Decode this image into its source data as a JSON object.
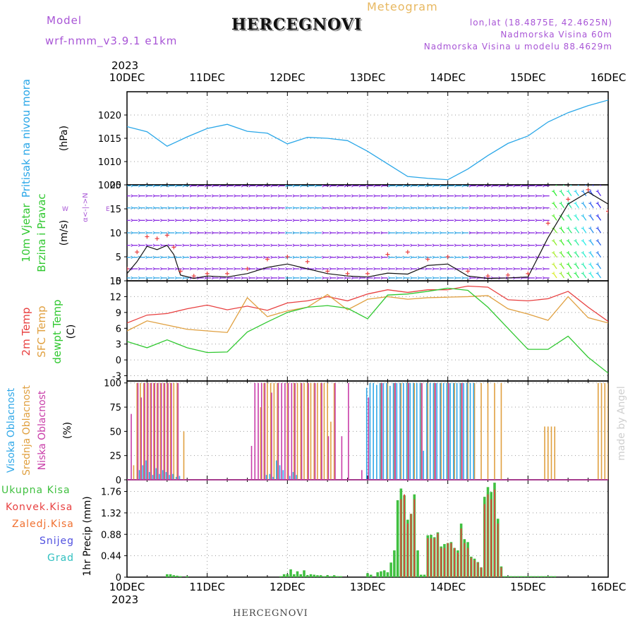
{
  "header": {
    "model_label": "Model",
    "model_name": "wrf-nmm_v3.9.1 e1km",
    "station": "HERCEGNOVI",
    "meteogram": "Meteogram",
    "lonlat": "lon,lat (18.4875E, 42.4625N)",
    "elevation": "Nadmorska Visina 60m",
    "model_elevation": "Nadmorska Visina u modelu 88.4629m",
    "year_top": "2023",
    "year_bottom": "2023",
    "footer_station": "HERCEGNOVI",
    "watermark": "made by Angel"
  },
  "colors": {
    "pressure": "#2aa7e8",
    "temp2m": "#e84040",
    "sfc": "#e0a040",
    "dewpt": "#30c830",
    "wind_arrows": "#8a2be2",
    "wind_speed": "#111111",
    "gust": "#e84040",
    "cloud_high": "#30a8e8",
    "cloud_mid": "#e0a040",
    "cloud_low": "#c83ca8",
    "precip_total": "#40c040",
    "precip_conv": "#e84040"
  },
  "x_ticks": [
    "10DEC",
    "11DEC",
    "12DEC",
    "13DEC",
    "14DEC",
    "15DEC",
    "16DEC"
  ],
  "panels": {
    "pressure": {
      "ylabel_lines": [
        "Pritisak na nivou mora"
      ],
      "unit": "(hPa)",
      "ticks": [
        "1005",
        "1010",
        "1015",
        "1020"
      ]
    },
    "wind": {
      "ylabel_lines": [
        "10m Vjetar",
        "Brzina i Pravac"
      ],
      "unit": "(m/s)",
      "ticks": [
        "0",
        "5",
        "10",
        "15",
        "20"
      ],
      "compass": "N",
      "compass_w": "W",
      "compass_e": "E"
    },
    "temp": {
      "ylabel_lines": [
        "2m Temp",
        "SFC Temp",
        "dewpt Temp"
      ],
      "unit": "(C)",
      "ticks": [
        "-3",
        "0",
        "3",
        "6",
        "9",
        "12",
        "15"
      ]
    },
    "cloud": {
      "ylabel_lines": [
        "Visoka Oblacnost",
        "Srednja Oblacnost",
        "Niska Oblacnost"
      ],
      "unit": "(%)",
      "ticks": [
        "0",
        "25",
        "50",
        "75",
        "100"
      ]
    },
    "precip": {
      "legend": [
        "Ukupna Kisa",
        "Konvek.Kisa",
        "Zaledj.Kisa",
        "Snijeg",
        "Grad"
      ],
      "unit_label": "1hr Precip (mm)",
      "ticks": [
        "0",
        "0.44",
        "0.88",
        "1.32",
        "1.76"
      ]
    }
  },
  "chart_data": [
    {
      "type": "line",
      "title": "Pritisak na nivou mora",
      "ylabel": "(hPa)",
      "ylim": [
        1005,
        1025
      ],
      "xlim": [
        0,
        144
      ],
      "x": [
        0,
        6,
        12,
        18,
        24,
        30,
        36,
        42,
        48,
        54,
        60,
        66,
        72,
        78,
        84,
        90,
        96,
        102,
        108,
        114,
        120,
        126,
        132,
        138,
        144
      ],
      "series": [
        {
          "values": [
            1017.5,
            1016.4,
            1013.3,
            1015.3,
            1017.1,
            1018.0,
            1016.5,
            1016.1,
            1013.8,
            1015.2,
            1015.0,
            1014.5,
            1012.2,
            1009.5,
            1006.8,
            1006.4,
            1006.1,
            1008.4,
            1011.3,
            1013.9,
            1015.5,
            1018.5,
            1020.5,
            1022.0,
            1023.2
          ]
        }
      ]
    },
    {
      "type": "line",
      "title": "10m Vjetar Brzina i Pravac",
      "ylabel": "(m/s)",
      "ylim": [
        0,
        20
      ],
      "xlim": [
        0,
        144
      ],
      "series": [
        {
          "x": [
            0,
            3,
            6,
            9,
            12,
            14,
            16,
            20,
            24,
            30,
            36,
            42,
            48,
            54,
            60,
            66,
            72,
            78,
            84,
            90,
            96,
            102,
            108,
            114,
            120,
            126,
            132,
            138,
            144
          ],
          "values": [
            1.5,
            4.0,
            7.2,
            6.5,
            7.4,
            5.5,
            1.2,
            0.5,
            1.0,
            0.8,
            1.5,
            2.8,
            3.5,
            2.5,
            1.5,
            1.0,
            0.8,
            1.6,
            1.4,
            3.2,
            3.5,
            1.0,
            0.5,
            0.6,
            0.8,
            9.0,
            16.0,
            18.5,
            16.0
          ]
        },
        {
          "x": [
            0,
            3,
            6,
            9,
            12,
            14,
            16,
            20,
            24,
            30,
            36,
            42,
            48,
            54,
            60,
            66,
            72,
            78,
            84,
            90,
            96,
            102,
            108,
            114,
            120,
            126,
            132,
            138,
            144
          ],
          "values": [
            2.5,
            6.0,
            9.2,
            8.8,
            9.5,
            7.0,
            2.0,
            1.0,
            1.5,
            1.5,
            2.5,
            4.5,
            5.0,
            4.0,
            2.0,
            1.5,
            1.5,
            5.5,
            6.0,
            4.5,
            5.0,
            2.0,
            1.0,
            1.2,
            1.5,
            12.0,
            17.0,
            19.0,
            14.5
          ]
        }
      ]
    },
    {
      "type": "line",
      "title": "2m Temp / SFC Temp / dewpt Temp",
      "ylabel": "(C)",
      "ylim": [
        -4,
        15
      ],
      "xlim": [
        0,
        144
      ],
      "x": [
        0,
        6,
        12,
        18,
        24,
        30,
        36,
        42,
        48,
        54,
        60,
        66,
        72,
        78,
        84,
        90,
        96,
        102,
        108,
        114,
        120,
        126,
        132,
        138,
        144
      ],
      "series": [
        {
          "values": [
            7.0,
            8.5,
            8.8,
            9.7,
            10.4,
            9.5,
            10.2,
            9.4,
            10.8,
            11.2,
            12.0,
            11.2,
            12.5,
            13.3,
            12.8,
            13.3,
            13.3,
            14.0,
            13.8,
            11.4,
            11.2,
            11.6,
            13.0,
            10.0,
            7.3
          ]
        },
        {
          "values": [
            5.5,
            7.4,
            6.6,
            5.8,
            5.5,
            5.2,
            11.8,
            8.2,
            9.3,
            10.0,
            12.4,
            9.5,
            11.5,
            12.0,
            11.5,
            11.8,
            11.9,
            12.0,
            12.2,
            9.7,
            8.7,
            7.5,
            12.0,
            8.0,
            7.0
          ]
        },
        {
          "values": [
            3.5,
            2.3,
            3.8,
            2.3,
            1.4,
            1.5,
            5.3,
            7.2,
            9.0,
            10.0,
            10.3,
            9.8,
            7.8,
            12.3,
            12.5,
            13.0,
            13.6,
            13.2,
            10.0,
            6.0,
            2.0,
            2.0,
            4.5,
            0.5,
            -2.5
          ]
        }
      ]
    },
    {
      "type": "bar",
      "title": "Visoka / Srednja / Niska Oblacnost",
      "ylabel": "(%)",
      "ylim": [
        0,
        100
      ],
      "xlim": [
        0,
        144
      ],
      "series": [
        {
          "x": [
            4,
            5,
            6,
            7,
            8,
            9,
            10,
            11,
            12,
            13,
            14,
            15,
            16,
            42,
            43,
            44,
            45,
            46,
            47,
            49,
            50,
            51,
            72,
            73,
            74,
            75,
            76,
            77,
            78,
            79,
            80,
            81,
            82,
            83,
            84,
            85,
            86,
            87,
            88,
            89,
            90,
            91,
            92,
            93,
            94,
            95,
            96,
            97,
            98,
            99,
            100,
            101,
            102,
            103,
            104
          ],
          "values": [
            10,
            15,
            20,
            8,
            5,
            12,
            6,
            10,
            8,
            5,
            6,
            3,
            4,
            5,
            6,
            3,
            20,
            15,
            10,
            4,
            8,
            5,
            95,
            100,
            100,
            98,
            100,
            100,
            100,
            97,
            100,
            100,
            100,
            100,
            100,
            100,
            100,
            100,
            100,
            30,
            100,
            100,
            100,
            100,
            100,
            100,
            100,
            100,
            100,
            100,
            100,
            100,
            100,
            100,
            100
          ]
        },
        {
          "x": [
            2,
            3,
            4,
            5,
            6,
            7,
            8,
            9,
            10,
            11,
            12,
            13,
            14,
            15,
            17,
            40,
            41,
            42,
            43,
            44,
            45,
            48,
            50,
            51,
            52,
            53,
            54,
            55,
            56,
            57,
            58,
            59,
            60,
            61,
            62,
            76,
            78,
            80,
            82,
            84,
            86,
            88,
            90,
            92,
            94,
            96,
            98,
            100,
            102,
            104,
            106,
            108,
            110,
            112,
            125,
            126,
            127,
            128,
            141,
            142,
            143,
            144
          ],
          "values": [
            15,
            100,
            100,
            100,
            100,
            100,
            100,
            100,
            100,
            100,
            100,
            100,
            100,
            100,
            50,
            75,
            100,
            100,
            100,
            100,
            100,
            100,
            100,
            100,
            100,
            100,
            100,
            100,
            100,
            100,
            100,
            100,
            100,
            60,
            100,
            100,
            100,
            100,
            100,
            100,
            100,
            100,
            100,
            100,
            100,
            100,
            100,
            100,
            100,
            100,
            100,
            100,
            100,
            100,
            55,
            55,
            55,
            55,
            100,
            100,
            100,
            100
          ]
        },
        {
          "x": [
            1,
            3,
            4,
            5,
            6,
            7,
            8,
            9,
            10,
            11,
            12,
            13,
            15,
            37,
            38,
            39,
            40,
            41,
            43,
            45,
            46,
            47,
            48,
            49,
            50,
            52,
            54,
            56,
            58,
            60,
            62,
            64,
            66,
            70,
            72,
            76,
            80,
            84,
            88,
            92,
            96,
            100
          ],
          "values": [
            68,
            100,
            85,
            100,
            100,
            100,
            100,
            100,
            100,
            100,
            100,
            100,
            100,
            35,
            100,
            100,
            100,
            100,
            90,
            100,
            100,
            100,
            100,
            100,
            100,
            100,
            100,
            100,
            100,
            45,
            100,
            45,
            100,
            10,
            85,
            100,
            100,
            100,
            100,
            100,
            100,
            100
          ]
        }
      ]
    },
    {
      "type": "bar",
      "title": "1hr Precip (mm)",
      "ylabel": "1hr Precip (mm)",
      "ylim": [
        0,
        2.0
      ],
      "xlim": [
        0,
        144
      ],
      "series": [
        {
          "x": [
            12,
            13,
            14,
            15,
            16,
            18,
            46,
            47,
            48,
            49,
            50,
            51,
            52,
            53,
            54,
            55,
            56,
            57,
            58,
            59,
            60,
            61,
            62,
            63,
            64,
            72,
            73,
            75,
            76,
            77,
            78,
            79,
            80,
            81,
            82,
            83,
            84,
            85,
            86,
            87,
            88,
            89,
            90,
            91,
            92,
            93,
            94,
            95,
            96,
            97,
            98,
            99,
            100,
            101,
            102,
            103,
            104,
            105,
            106,
            107,
            108,
            109,
            110,
            111,
            112,
            113,
            114,
            115,
            116,
            117,
            118,
            119,
            120,
            121,
            122,
            123,
            124,
            125,
            126,
            127,
            128
          ],
          "values": [
            0.06,
            0.06,
            0.04,
            0.03,
            0.02,
            0.02,
            0.02,
            0.06,
            0.06,
            0.16,
            0.06,
            0.12,
            0.06,
            0.14,
            0.04,
            0.06,
            0.05,
            0.04,
            0.04,
            0.02,
            0.04,
            0.02,
            0.04,
            0.02,
            0.02,
            0.08,
            0.05,
            0.1,
            0.12,
            0.14,
            0.1,
            0.3,
            0.55,
            1.58,
            1.82,
            1.68,
            1.18,
            1.3,
            1.7,
            0.55,
            0.05,
            0.05,
            0.86,
            0.87,
            0.82,
            0.92,
            0.63,
            0.68,
            0.7,
            0.72,
            0.6,
            0.55,
            1.1,
            0.78,
            0.72,
            0.42,
            0.38,
            0.31,
            0.2,
            1.65,
            1.85,
            1.75,
            1.94,
            1.2,
            0.22,
            0.02,
            0.02,
            0.02,
            0.02,
            0.02,
            0.02,
            0.02,
            0.02,
            0.02,
            0.02,
            0.02,
            0.02,
            0.02,
            0.02,
            0.02,
            0.02
          ]
        },
        {
          "x": [
            82,
            83,
            84,
            85,
            86,
            90,
            91,
            92,
            93,
            94,
            95,
            96,
            97,
            98,
            99,
            100,
            101,
            102,
            103,
            104,
            105,
            106,
            107,
            108,
            109,
            110,
            111,
            112
          ],
          "values": [
            1.6,
            1.7,
            1.1,
            1.3,
            1.6,
            0.8,
            0.8,
            0.8,
            0.9,
            0.6,
            0.6,
            0.7,
            0.7,
            0.6,
            0.5,
            1.0,
            0.7,
            0.6,
            0.4,
            0.35,
            0.3,
            0.2,
            1.5,
            1.7,
            1.6,
            1.8,
            1.1,
            0.2
          ]
        }
      ]
    }
  ]
}
